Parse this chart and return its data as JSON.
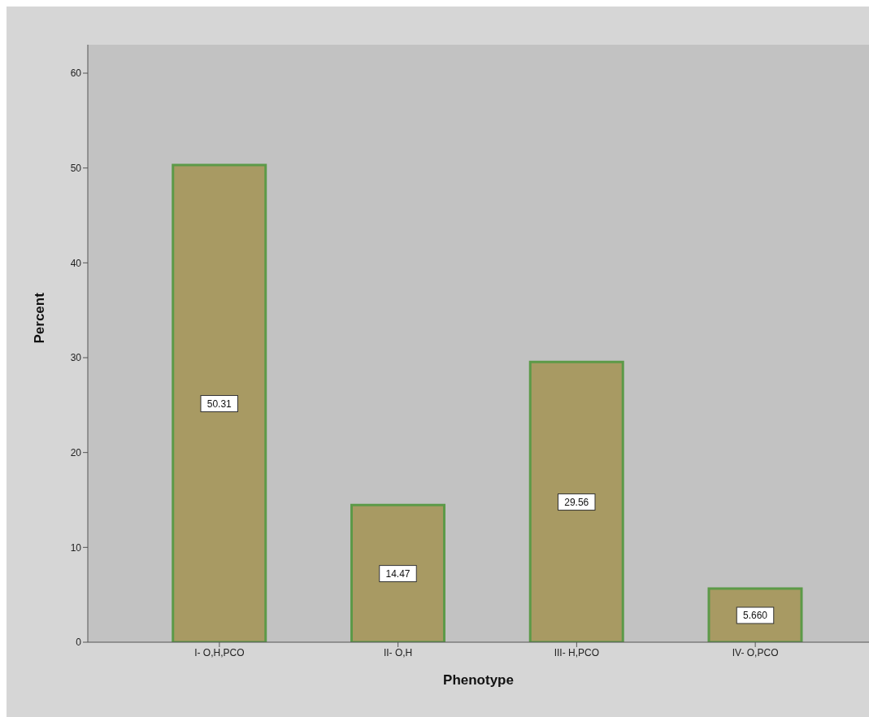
{
  "chart_data": {
    "type": "bar",
    "xlabel": "Phenotype",
    "ylabel": "Percent",
    "categories": [
      "I- O,H,PCO",
      "II- O,H",
      "III- H,PCO",
      "IV- O,PCO"
    ],
    "values": [
      50.31,
      14.47,
      29.56,
      5.66
    ],
    "value_labels": [
      "50.31",
      "14.47",
      "29.56",
      "5.660"
    ],
    "color": "#a89a63",
    "ylim": [
      0,
      63
    ],
    "yticks": [
      0,
      10,
      20,
      30,
      40,
      50,
      60
    ]
  }
}
